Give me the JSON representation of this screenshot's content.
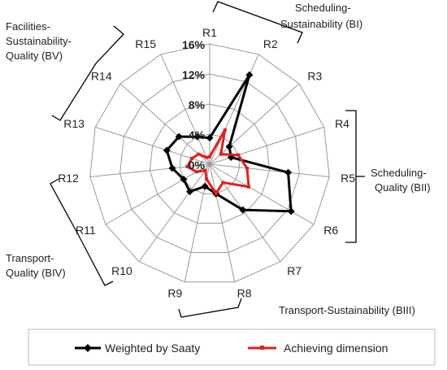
{
  "chart_data": {
    "type": "radar",
    "categories": [
      "R1",
      "R2",
      "R3",
      "R4",
      "R5",
      "R6",
      "R7",
      "R8",
      "R9",
      "R10",
      "R11",
      "R12",
      "R13",
      "R14",
      "R15"
    ],
    "tick_labels": [
      "0%",
      "4%",
      "8%",
      "12%",
      "16%"
    ],
    "rlim": [
      0,
      16
    ],
    "grid": true,
    "legend_position": "bottom",
    "series": [
      {
        "name": "Weighted by Saaty",
        "color": "#000000",
        "marker": "diamond",
        "values": [
          3.5,
          13.0,
          3.5,
          3.0,
          10.5,
          12.5,
          7.5,
          4.0,
          3.0,
          4.5,
          4.0,
          5.0,
          6.0,
          5.5,
          4.0
        ]
      },
      {
        "name": "Achieving dimension",
        "color": "#e02020",
        "marker": "square",
        "values": [
          1.0,
          5.0,
          2.0,
          4.0,
          5.0,
          6.0,
          3.0,
          4.0,
          2.0,
          1.0,
          2.0,
          3.0,
          2.5,
          2.0,
          1.0
        ]
      }
    ],
    "annotations": [
      "Scheduling-Sustainability (BI)",
      "Scheduling-Quality (BII)",
      "Transport-Sustainability (BIII)",
      "Transport-Quality (BIV)",
      "Facilities-Sustainability-Quality (BV)"
    ]
  },
  "annotation_lines": {
    "bi": [
      "Scheduling-",
      "Sustainability (BI)"
    ],
    "bii": [
      "Scheduling-",
      "Quality (BII)"
    ],
    "biii": [
      "Transport-Sustainability (BIII)"
    ],
    "biv": [
      "Transport-",
      "Quality (BIV)"
    ],
    "bv": [
      "Facilities-",
      "Sustainability-",
      "Quality (BV)"
    ]
  }
}
